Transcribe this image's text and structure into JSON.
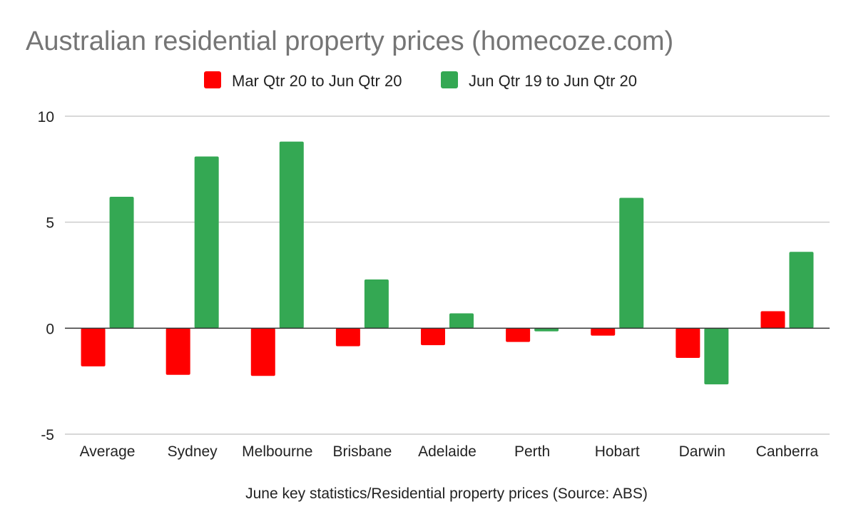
{
  "chart_data": {
    "type": "bar",
    "title": "Australian residential property prices (homecoze.com)",
    "xlabel": "June key statistics/Residential property prices (Source: ABS)",
    "ylabel": "",
    "ylim": [
      -5,
      10
    ],
    "yticks": [
      10,
      5,
      0,
      -5
    ],
    "grid": true,
    "legend_position": "top",
    "categories": [
      "Average",
      "Sydney",
      "Melbourne",
      "Brisbane",
      "Adelaide",
      "Perth",
      "Hobart",
      "Darwin",
      "Canberra"
    ],
    "series": [
      {
        "name": "Mar Qtr 20 to Jun Qtr 20",
        "color": "#ff0000",
        "values": [
          -1.8,
          -2.2,
          -2.25,
          -0.85,
          -0.8,
          -0.65,
          -0.35,
          -1.4,
          0.8
        ]
      },
      {
        "name": "Jun Qtr 19 to Jun Qtr 20",
        "color": "#34a853",
        "values": [
          6.2,
          8.1,
          8.8,
          2.3,
          0.7,
          -0.15,
          6.15,
          -2.65,
          3.6
        ]
      }
    ],
    "colors": {
      "title": "#757575",
      "text": "#222222",
      "grid": "#cccccc",
      "zero_line": "#333333"
    }
  }
}
